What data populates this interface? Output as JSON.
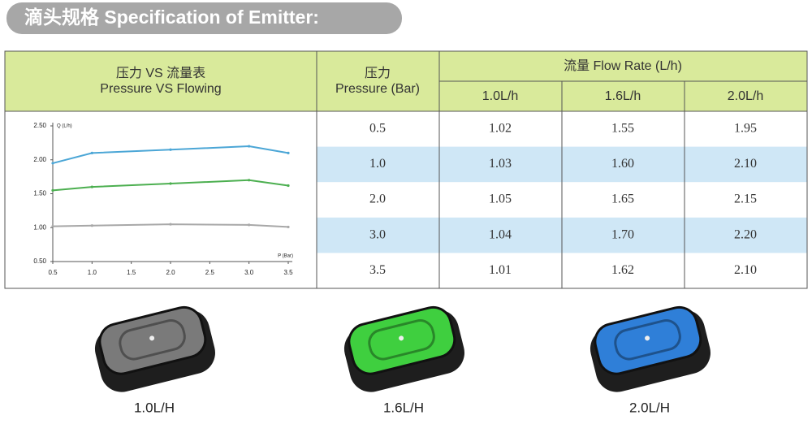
{
  "header": {
    "title": "滴头规格 Specification of Emitter:"
  },
  "table": {
    "chart_heading": [
      "压力 VS 流量表",
      "Pressure VS Flowing"
    ],
    "pressure_heading": [
      "压力",
      "Pressure (Bar)"
    ],
    "flow_heading": "流量 Flow Rate (L/h)",
    "flow_columns": [
      "1.0L/h",
      "1.6L/h",
      "2.0L/h"
    ],
    "rows": [
      [
        "0.5",
        "1.02",
        "1.55",
        "1.95"
      ],
      [
        "1.0",
        "1.03",
        "1.60",
        "2.10"
      ],
      [
        "2.0",
        "1.05",
        "1.65",
        "2.15"
      ],
      [
        "3.0",
        "1.04",
        "1.70",
        "2.20"
      ],
      [
        "3.5",
        "1.01",
        "1.62",
        "2.10"
      ]
    ]
  },
  "chart_data": {
    "type": "line",
    "x_label": "P (Bar)",
    "y_label": "Q (L/h)",
    "x": [
      0.5,
      1.0,
      2.0,
      3.0,
      3.5
    ],
    "series": [
      {
        "color": "#4ba6d6",
        "values": [
          1.95,
          2.1,
          2.15,
          2.2,
          2.1
        ]
      },
      {
        "color": "#4caf50",
        "values": [
          1.55,
          1.6,
          1.65,
          1.7,
          1.62
        ]
      },
      {
        "color": "#a8a8a8",
        "values": [
          1.02,
          1.03,
          1.05,
          1.04,
          1.01
        ]
      }
    ],
    "xlim": [
      0.5,
      3.5
    ],
    "ylim": [
      0.5,
      2.5
    ],
    "xticks": [
      0.5,
      {
        "value": 1,
        "label": "1.0"
      },
      1.5,
      {
        "value": 2,
        "label": "2.0"
      },
      2.5,
      {
        "value": 3,
        "label": "3.0"
      },
      3.5
    ],
    "yticks": [
      {
        "value": 0.5,
        "label": "0.50"
      },
      {
        "value": 1,
        "label": "1.00"
      },
      {
        "value": 1.5,
        "label": "1.50"
      },
      {
        "value": 2,
        "label": "2.00"
      },
      {
        "value": 2.5,
        "label": "2.50"
      }
    ]
  },
  "products": [
    {
      "label": "1.0L/H",
      "color": "#7a7a7a"
    },
    {
      "label": "1.6L/H",
      "color": "#3fcf3f"
    },
    {
      "label": "2.0L/H",
      "color": "#2f7fd8"
    }
  ]
}
